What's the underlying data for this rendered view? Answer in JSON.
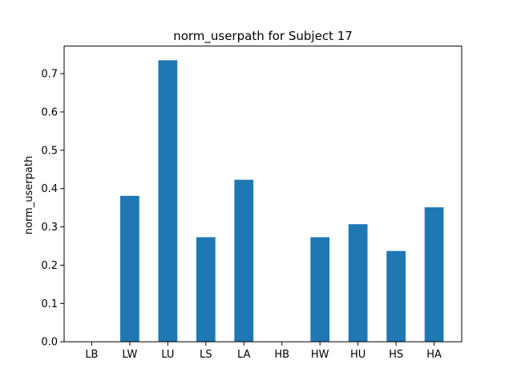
{
  "chart_data": {
    "type": "bar",
    "title": "norm_userpath for Subject 17",
    "xlabel": "",
    "ylabel": "norm_userpath",
    "categories": [
      "LB",
      "LW",
      "LU",
      "LS",
      "LA",
      "HB",
      "HW",
      "HU",
      "HS",
      "HA"
    ],
    "values": [
      0.0,
      0.381,
      0.735,
      0.273,
      0.423,
      0.0,
      0.273,
      0.307,
      0.237,
      0.351
    ],
    "ylim": [
      0,
      0.772
    ],
    "yticks": [
      0.0,
      0.1,
      0.2,
      0.3,
      0.4,
      0.5,
      0.6,
      0.7
    ],
    "ytick_labels": [
      "0.0",
      "0.1",
      "0.2",
      "0.3",
      "0.4",
      "0.5",
      "0.6",
      "0.7"
    ],
    "bar_color": "#1f77b4",
    "grid": false,
    "legend": null
  }
}
